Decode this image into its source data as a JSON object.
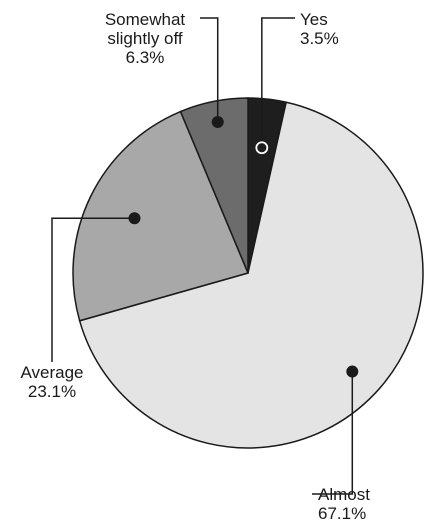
{
  "chart_data": {
    "type": "pie",
    "title": "",
    "start_angle_deg": 0,
    "direction": "clockwise",
    "slices": [
      {
        "label": [
          "Yes"
        ],
        "value_text": "3.5%",
        "value": 3.5,
        "color": "#1e1e1e",
        "marker": "open"
      },
      {
        "label": [
          "Almost"
        ],
        "value_text": "67.1%",
        "value": 67.1,
        "color": "#e4e4e4",
        "marker": "filled"
      },
      {
        "label": [
          "Average"
        ],
        "value_text": "23.1%",
        "value": 23.1,
        "color": "#a8a8a8",
        "marker": "filled"
      },
      {
        "label": [
          "Somewhat",
          "slightly off"
        ],
        "value_text": "6.3%",
        "value": 6.3,
        "color": "#6c6c6c",
        "marker": "filled"
      }
    ]
  }
}
